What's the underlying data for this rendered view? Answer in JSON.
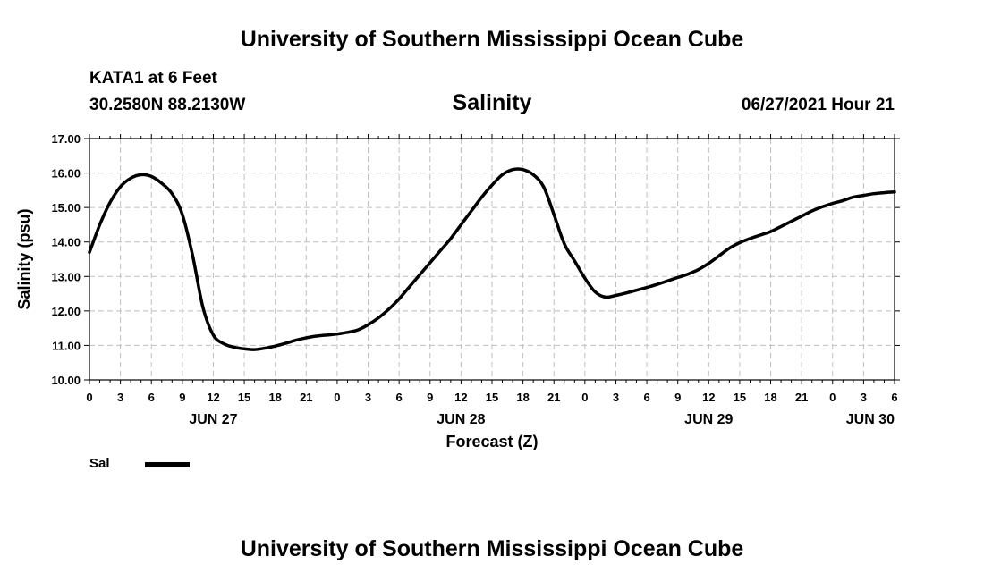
{
  "header": {
    "title": "University of Southern Mississippi Ocean Cube",
    "station": "KATA1 at 6 Feet",
    "coords": "30.2580N  88.2130W",
    "run_time": "06/27/2021 Hour 21"
  },
  "footer": {
    "title": "University of Southern Mississippi Ocean Cube"
  },
  "legend": {
    "label": "Sal",
    "color": "#000000"
  },
  "chart_data": {
    "type": "line",
    "title": "Salinity",
    "xlabel": "Forecast (Z)",
    "ylabel": "Salinity (psu)",
    "ylim": [
      10.0,
      17.0
    ],
    "yticks": [
      "10.00",
      "11.00",
      "12.00",
      "13.00",
      "14.00",
      "15.00",
      "16.00",
      "17.00"
    ],
    "xlim_hours": [
      0,
      78
    ],
    "xticks": [
      "0",
      "3",
      "6",
      "9",
      "12",
      "15",
      "18",
      "21",
      "0",
      "3",
      "6",
      "9",
      "12",
      "15",
      "18",
      "21",
      "0",
      "3",
      "6",
      "9",
      "12",
      "15",
      "18",
      "21",
      "0",
      "3",
      "6"
    ],
    "day_labels": [
      {
        "label": "JUN 27",
        "hour": 12
      },
      {
        "label": "JUN 28",
        "hour": 36
      },
      {
        "label": "JUN 29",
        "hour": 60
      },
      {
        "label": "JUN 30",
        "hour": 78
      }
    ],
    "grid": true,
    "legend_position": "bottom-left",
    "series": [
      {
        "name": "Sal",
        "x": [
          0,
          1,
          2,
          3,
          4,
          5,
          6,
          7,
          8,
          9,
          10,
          11,
          12,
          13,
          14,
          15,
          16,
          17,
          18,
          19,
          20,
          21,
          22,
          23,
          24,
          25,
          26,
          27,
          28,
          29,
          30,
          31,
          32,
          33,
          34,
          35,
          36,
          37,
          38,
          39,
          40,
          41,
          42,
          43,
          44,
          45,
          46,
          47,
          48,
          49,
          50,
          51,
          52,
          53,
          54,
          55,
          56,
          57,
          58,
          59,
          60,
          61,
          62,
          63,
          64,
          65,
          66,
          67,
          68,
          69,
          70,
          71,
          72,
          73,
          74,
          75,
          76,
          77,
          78
        ],
        "values": [
          13.7,
          14.5,
          15.15,
          15.6,
          15.85,
          15.95,
          15.9,
          15.7,
          15.4,
          14.8,
          13.6,
          12.1,
          11.3,
          11.05,
          10.95,
          10.9,
          10.88,
          10.92,
          10.98,
          11.06,
          11.15,
          11.22,
          11.27,
          11.3,
          11.33,
          11.38,
          11.45,
          11.6,
          11.8,
          12.05,
          12.35,
          12.7,
          13.05,
          13.4,
          13.75,
          14.1,
          14.5,
          14.9,
          15.3,
          15.65,
          15.95,
          16.1,
          16.1,
          15.95,
          15.6,
          14.8,
          13.95,
          13.45,
          12.95,
          12.55,
          12.4,
          12.45,
          12.52,
          12.6,
          12.68,
          12.77,
          12.87,
          12.97,
          13.07,
          13.2,
          13.38,
          13.6,
          13.82,
          13.98,
          14.1,
          14.2,
          14.3,
          14.45,
          14.6,
          14.75,
          14.9,
          15.02,
          15.12,
          15.2,
          15.3,
          15.35,
          15.4,
          15.43,
          15.45
        ]
      }
    ]
  }
}
